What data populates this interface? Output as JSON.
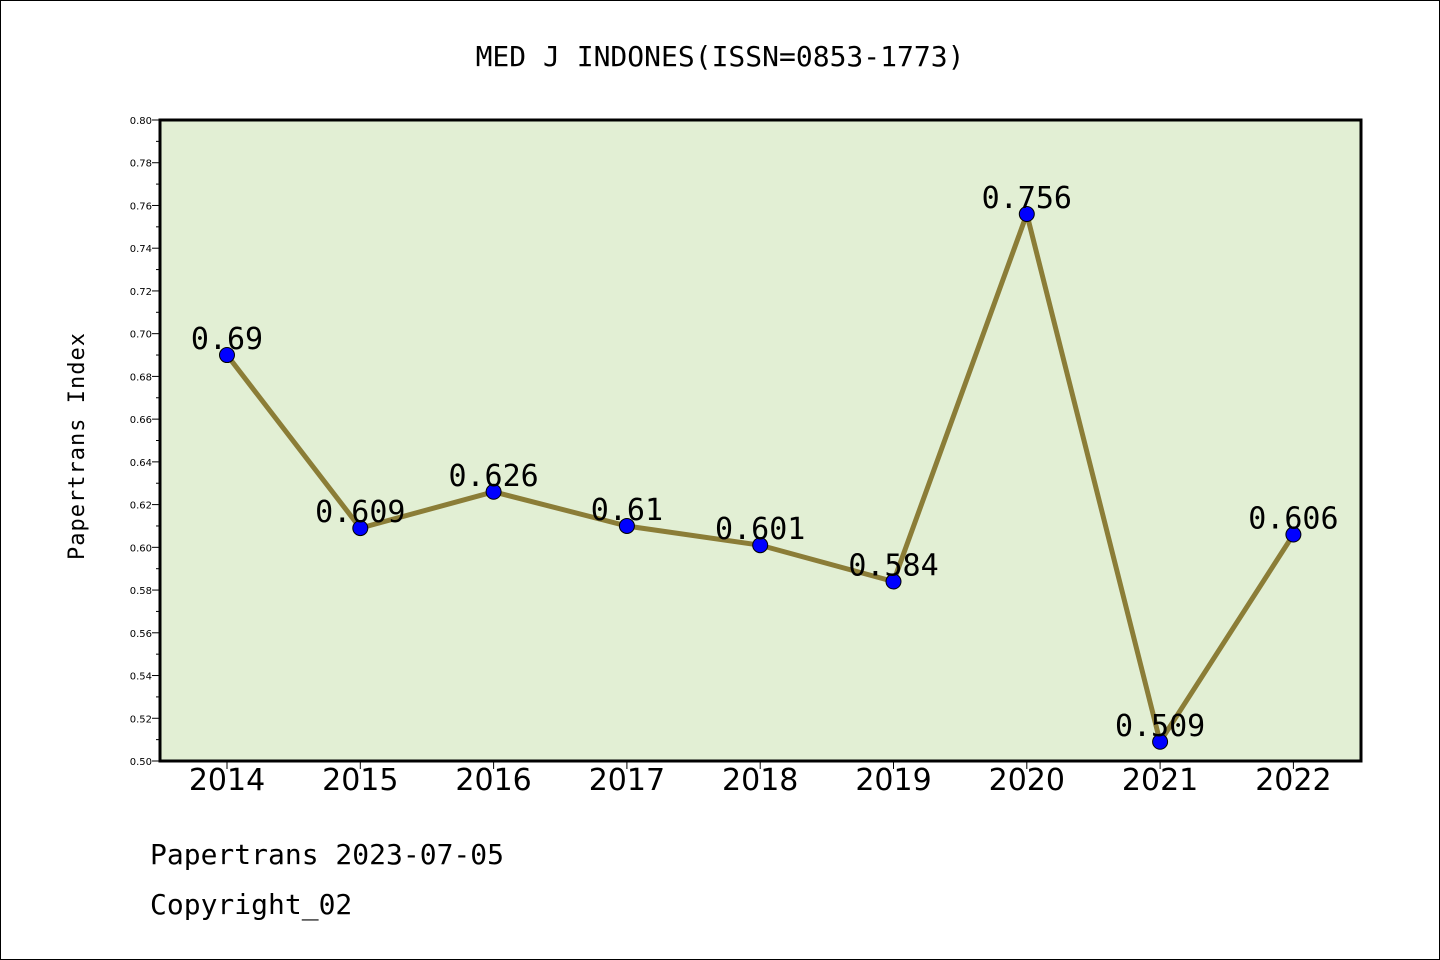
{
  "chart_data": {
    "type": "line",
    "title": "MED J INDONES(ISSN=0853-1773)",
    "ylabel": "Papertrans Index",
    "xlabel": "",
    "categories": [
      "2014",
      "2015",
      "2016",
      "2017",
      "2018",
      "2019",
      "2020",
      "2021",
      "2022"
    ],
    "values": [
      0.69,
      0.609,
      0.626,
      0.61,
      0.601,
      0.584,
      0.756,
      0.509,
      0.606
    ],
    "data_labels": [
      "0.69",
      "0.609",
      "0.626",
      "0.61",
      "0.601",
      "0.584",
      "0.756",
      "0.509",
      "0.606"
    ],
    "ylim": [
      0.5,
      0.8
    ],
    "yticks": [
      "0.50",
      "0.52",
      "0.54",
      "0.56",
      "0.58",
      "0.60",
      "0.62",
      "0.64",
      "0.66",
      "0.68",
      "0.70",
      "0.72",
      "0.74",
      "0.76",
      "0.78",
      "0.80"
    ],
    "grid": false,
    "colors": {
      "plot_background": "#e2efd4",
      "line": "#8b7d37",
      "marker": "#0000ff"
    }
  },
  "footer": {
    "source": "Papertrans 2023-07-05",
    "copyright": "Copyright_02"
  }
}
